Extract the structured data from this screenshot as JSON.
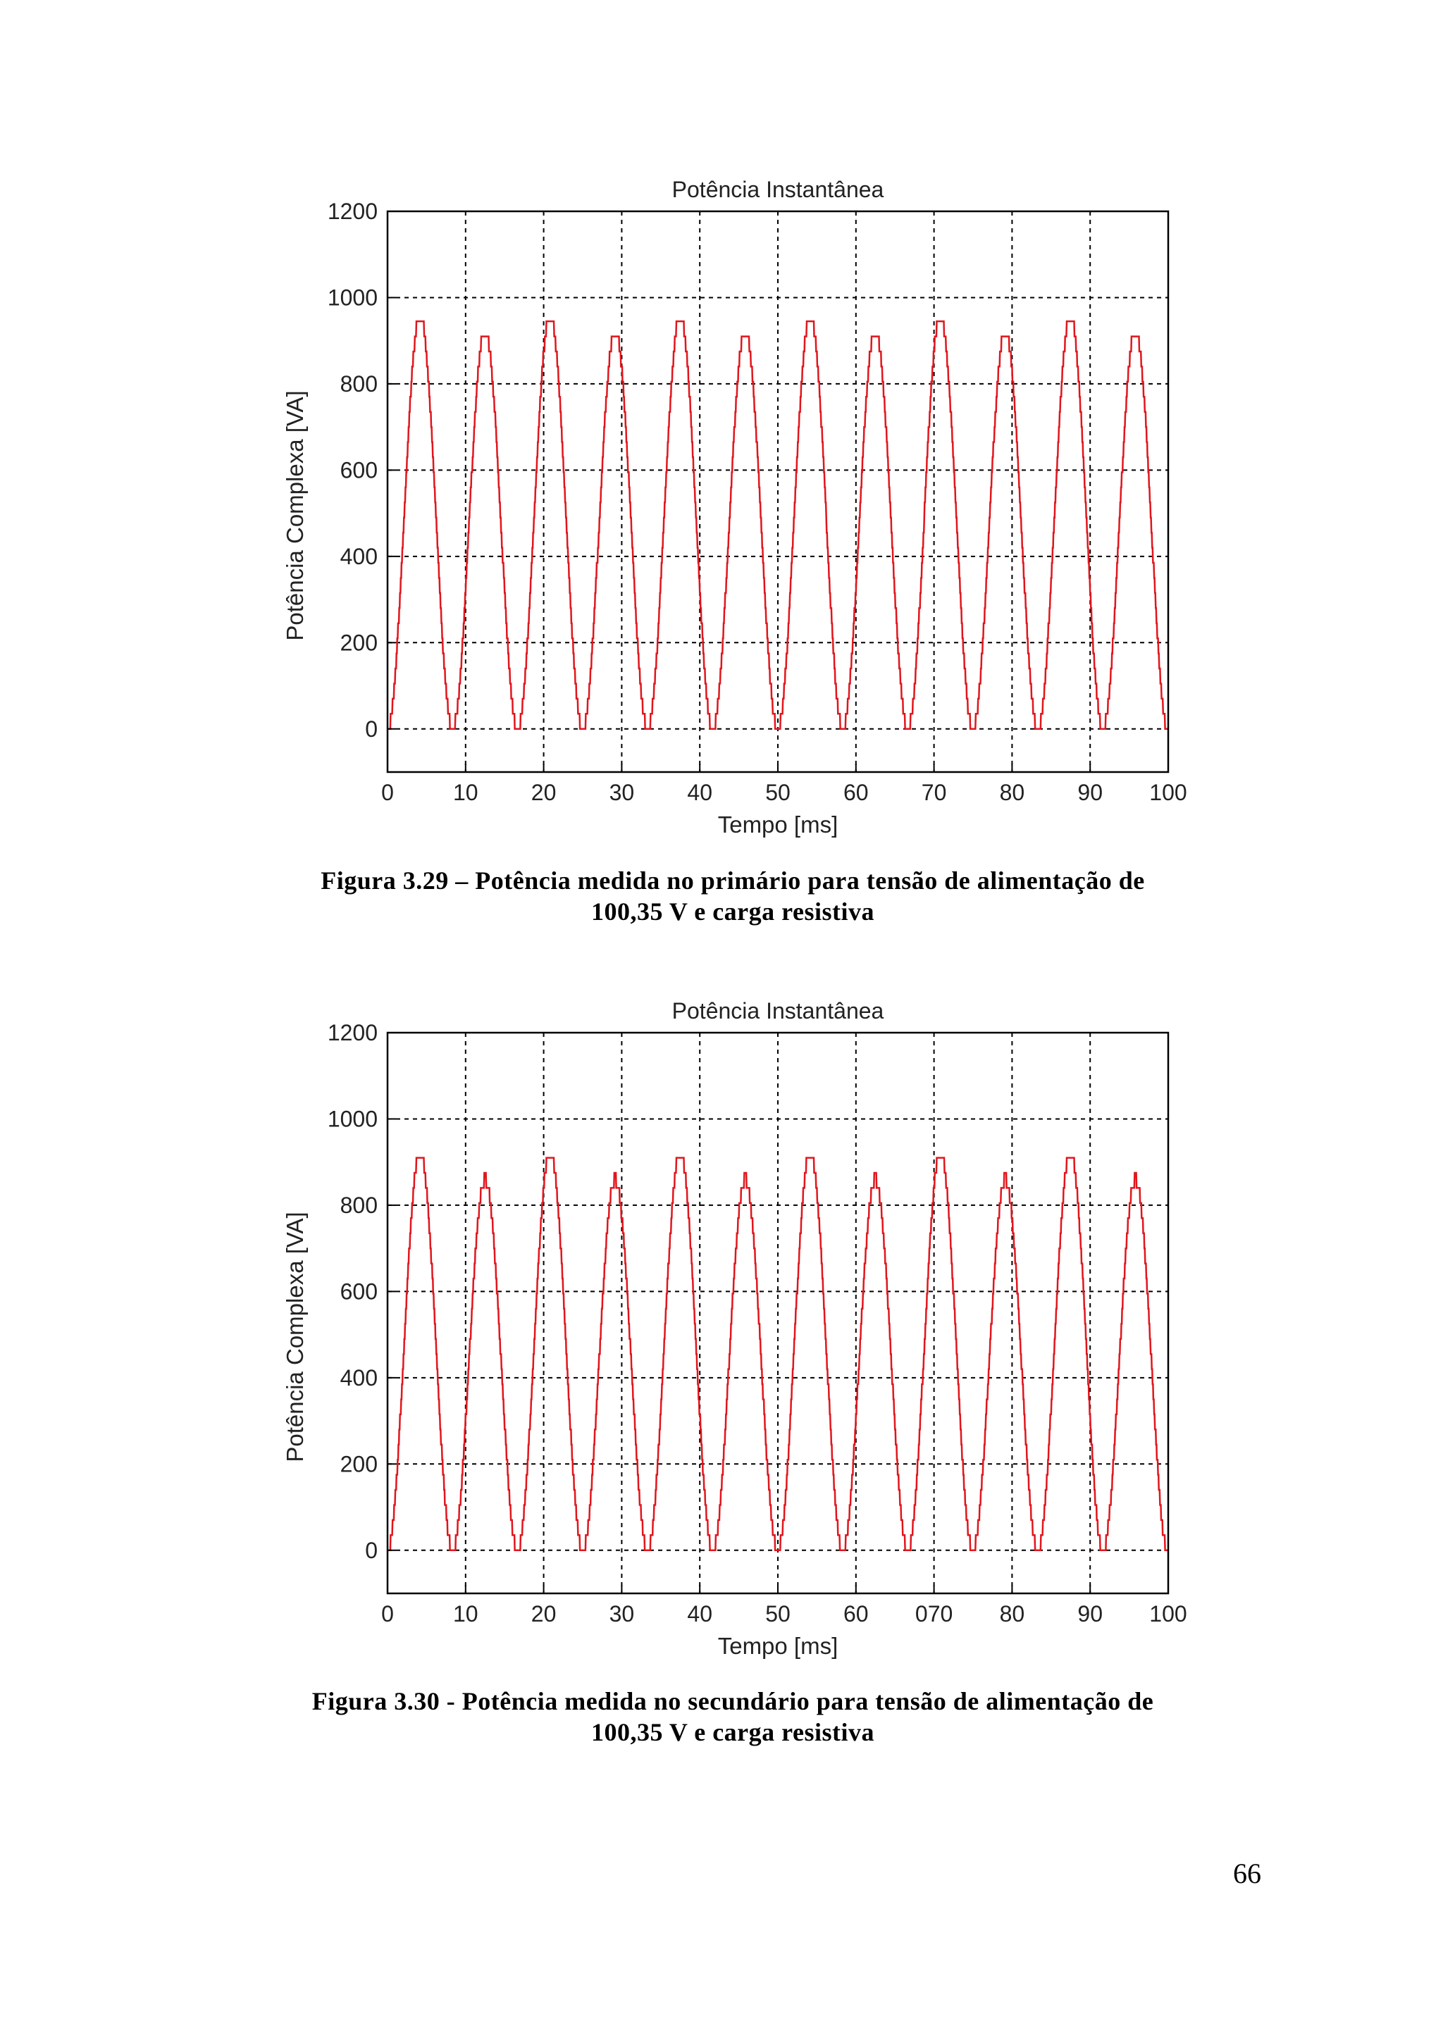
{
  "figures": [
    {
      "caption_line1": "Figura 3.29 – Potência medida no primário para tensão de alimentação de",
      "caption_line2": "100,35 V e carga resistiva"
    },
    {
      "caption_line1": "Figura 3.30 - Potência medida no secundário para tensão de alimentação de",
      "caption_line2": "100,35 V e carga resistiva"
    }
  ],
  "page_number": "66",
  "chart_data": [
    {
      "type": "line",
      "title": "Potência Instantânea",
      "xlabel": "Tempo [ms]",
      "ylabel": "Potência Complexa [VA]",
      "xlim": [
        0,
        100
      ],
      "ylim": [
        -100,
        1200
      ],
      "xticks": [
        "0",
        "10",
        "20",
        "30",
        "40",
        "50",
        "60",
        "70",
        "80",
        "90",
        "100"
      ],
      "yticks": [
        "0",
        "200",
        "400",
        "600",
        "800",
        "1000",
        "1200"
      ],
      "grid": true,
      "line_color": "#e0161c",
      "series": [
        {
          "name": "Potência Instantânea",
          "period_ms": 8.33,
          "x0_ms": 0,
          "peaks": [
            960,
            925
          ],
          "min": 0
        }
      ]
    },
    {
      "type": "line",
      "title": "Potência Instantânea",
      "xlabel": "Tempo [ms]",
      "ylabel": "Potência Complexa [VA]",
      "xlim": [
        0,
        100
      ],
      "ylim": [
        -100,
        1200
      ],
      "xticks": [
        "0",
        "10",
        "20",
        "30",
        "40",
        "50",
        "60",
        "070",
        "80",
        "90",
        "100"
      ],
      "yticks": [
        "0",
        "200",
        "400",
        "600",
        "800",
        "1000",
        "1200"
      ],
      "grid": true,
      "line_color": "#e0161c",
      "series": [
        {
          "name": "Potência Instantânea",
          "period_ms": 8.33,
          "x0_ms": 0,
          "peaks": [
            925,
            860
          ],
          "min": 0
        }
      ]
    }
  ]
}
